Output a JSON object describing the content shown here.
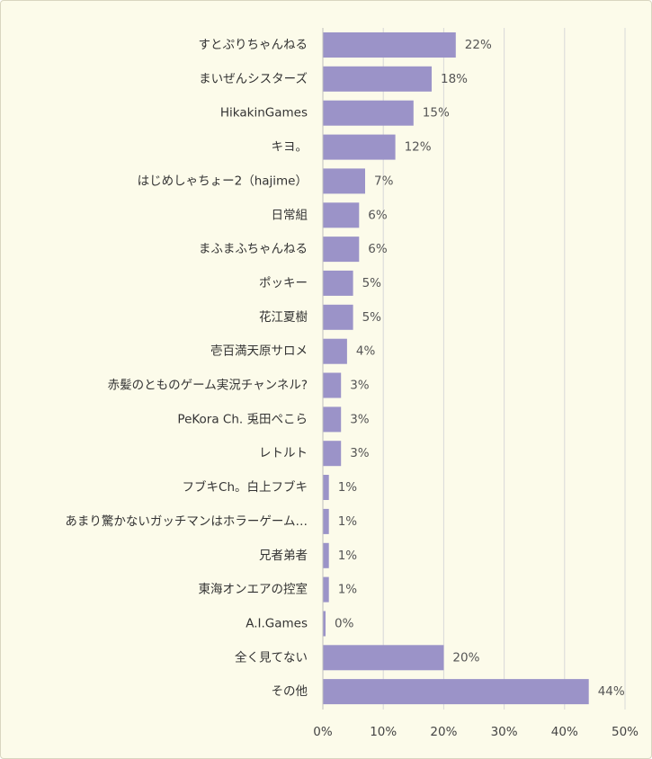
{
  "chart_data": {
    "type": "bar",
    "orientation": "horizontal",
    "categories": [
      "すとぷりちゃんねる",
      "まいぜんシスターズ",
      "HikakinGames",
      "キヨ。",
      "はじめしゃちょー2（hajime）",
      "日常組",
      "まふまふちゃんねる",
      "ポッキー",
      "花江夏樹",
      "壱百満天原サロメ",
      "赤髪のとものゲーム実況チャンネル?",
      "PeKora Ch. 兎田ぺこら",
      "レトルト",
      "フブキCh。白上フブキ",
      "あまり驚かないガッチマンはホラーゲーム…",
      "兄者弟者",
      "東海オンエアの控室",
      "A.I.Games",
      "全く見てない",
      "その他"
    ],
    "values": [
      22,
      18,
      15,
      12,
      7,
      6,
      6,
      5,
      5,
      4,
      3,
      3,
      3,
      1,
      1,
      1,
      1,
      0,
      20,
      44
    ],
    "value_labels": [
      "22%",
      "18%",
      "15%",
      "12%",
      "7%",
      "6%",
      "6%",
      "5%",
      "5%",
      "4%",
      "3%",
      "3%",
      "3%",
      "1%",
      "1%",
      "1%",
      "1%",
      "0%",
      "20%",
      "44%"
    ],
    "x_tick_labels": [
      "0%",
      "10%",
      "20%",
      "30%",
      "40%",
      "50%"
    ],
    "xlim": [
      0,
      50
    ],
    "grid": true,
    "title": "",
    "xlabel": "",
    "ylabel": ""
  },
  "colors": {
    "bar": "#9b93c8",
    "background": "#fcfbea",
    "grid": "#d8d8d8"
  }
}
